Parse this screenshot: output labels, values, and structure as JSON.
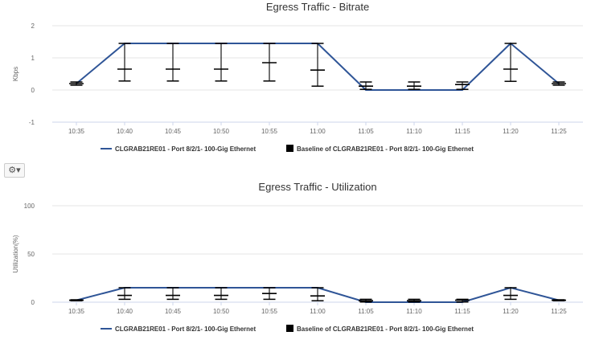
{
  "chart_data": [
    {
      "type": "line",
      "title": "Egress Traffic - Bitrate",
      "ylabel": "Kbps",
      "xlabel": "",
      "ylim": [
        -1,
        2
      ],
      "yticks": [
        -1,
        0,
        1,
        2
      ],
      "grid": true,
      "legend_placement": "bottom",
      "categories": [
        "10:35",
        "10:40",
        "10:45",
        "10:50",
        "10:55",
        "11:00",
        "11:05",
        "11:10",
        "11:15",
        "11:20",
        "11:25"
      ],
      "series": [
        {
          "name": "CLGRAB21RE01 - Port 8/2/1- 100-Gig Ethernet",
          "type": "line",
          "color": "#2f5597",
          "values": [
            0.2,
            1.45,
            1.45,
            1.45,
            1.45,
            1.45,
            0.0,
            0.0,
            0.0,
            1.45,
            0.2
          ]
        },
        {
          "name": "Baseline of CLGRAB21RE01 - Port 8/2/1- 100-Gig Ethernet",
          "type": "errorbar",
          "color": "#000000",
          "low": [
            0.15,
            0.28,
            0.28,
            0.28,
            0.28,
            0.12,
            0.02,
            0.02,
            0.02,
            0.27,
            0.15
          ],
          "median": [
            0.2,
            0.65,
            0.65,
            0.65,
            0.85,
            0.62,
            0.12,
            0.12,
            0.17,
            0.65,
            0.2
          ],
          "high": [
            0.25,
            1.45,
            1.45,
            1.45,
            1.45,
            1.45,
            0.25,
            0.25,
            0.25,
            1.45,
            0.25
          ]
        }
      ]
    },
    {
      "type": "line",
      "title": "Egress Traffic - Utilization",
      "ylabel": "Utilization(%)",
      "xlabel": "",
      "ylim": [
        0,
        100
      ],
      "yticks": [
        0,
        50,
        100
      ],
      "grid": true,
      "legend_placement": "bottom",
      "categories": [
        "10:35",
        "10:40",
        "10:45",
        "10:50",
        "10:55",
        "11:00",
        "11:05",
        "11:10",
        "11:15",
        "11:20",
        "11:25"
      ],
      "series": [
        {
          "name": "CLGRAB21RE01 - Port 8/2/1- 100-Gig Ethernet",
          "type": "line",
          "color": "#2f5597",
          "values": [
            2,
            15,
            15,
            15,
            15,
            15,
            0,
            0,
            0,
            15,
            2
          ]
        },
        {
          "name": "Baseline of CLGRAB21RE01 - Port 8/2/1- 100-Gig Ethernet",
          "type": "errorbar",
          "color": "#000000",
          "low": [
            1.5,
            3,
            3,
            3,
            3,
            1.5,
            0.2,
            0.2,
            0.2,
            3,
            1.5
          ],
          "median": [
            2,
            7,
            7,
            7,
            9,
            6.5,
            1.5,
            1.5,
            2,
            7,
            2
          ],
          "high": [
            2.5,
            15,
            15,
            15,
            15,
            15,
            3,
            3,
            3,
            15,
            2.5
          ]
        }
      ]
    }
  ],
  "toolbar": {
    "gear_icon": "gear-icon",
    "gear_glyph": "⚙▾"
  }
}
